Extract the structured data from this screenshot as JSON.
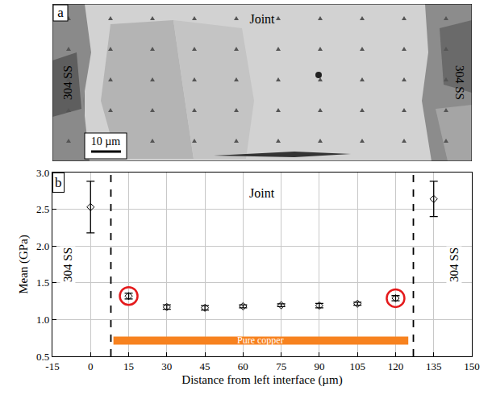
{
  "panel_a": {
    "letter": "a",
    "center_text": "Joint",
    "left_text": "304 SS",
    "right_text": "304 SS",
    "scale_bar": "10 µm"
  },
  "chart_data": {
    "type": "scatter",
    "letter": "b",
    "x": [
      0,
      15,
      30,
      45,
      60,
      75,
      90,
      105,
      120,
      135
    ],
    "values": [
      2.53,
      1.32,
      1.17,
      1.16,
      1.18,
      1.195,
      1.19,
      1.215,
      1.29,
      2.64
    ],
    "errors": [
      0.35,
      0.04,
      0.03,
      0.03,
      0.02,
      0.02,
      0.03,
      0.02,
      0.035,
      0.24
    ],
    "color": "#000000",
    "marker": "diamond-open",
    "highlight": {
      "x": [
        15,
        120
      ],
      "color": "#e41a1c"
    },
    "interfaces": [
      8,
      127
    ],
    "band": {
      "text": "Pure copper",
      "x": [
        9,
        125
      ],
      "y": [
        0.66,
        0.77
      ],
      "color": "#f7821f"
    },
    "region_labels": [
      {
        "text": "304 SS",
        "x": -9,
        "y": 1.75
      },
      {
        "text": "304 SS",
        "x": 143,
        "y": 1.75
      }
    ],
    "annotations": [
      {
        "text": "Joint",
        "x": 67.5,
        "y": 2.72
      }
    ],
    "xlabel": "Distance from left interface (µm)",
    "ylabel": "Mean (GPa)",
    "xlim": [
      -15,
      150
    ],
    "xticks": [
      -15,
      0,
      15,
      30,
      45,
      60,
      75,
      90,
      105,
      120,
      135,
      150
    ],
    "ylim": [
      0.5,
      3.0
    ],
    "yticks": [
      0.5,
      {
        "value": 1,
        "label": "1.0"
      },
      1.5,
      {
        "value": 2,
        "label": "2.0"
      },
      2.5,
      {
        "value": 3,
        "label": "3.0"
      }
    ],
    "grid": true
  }
}
